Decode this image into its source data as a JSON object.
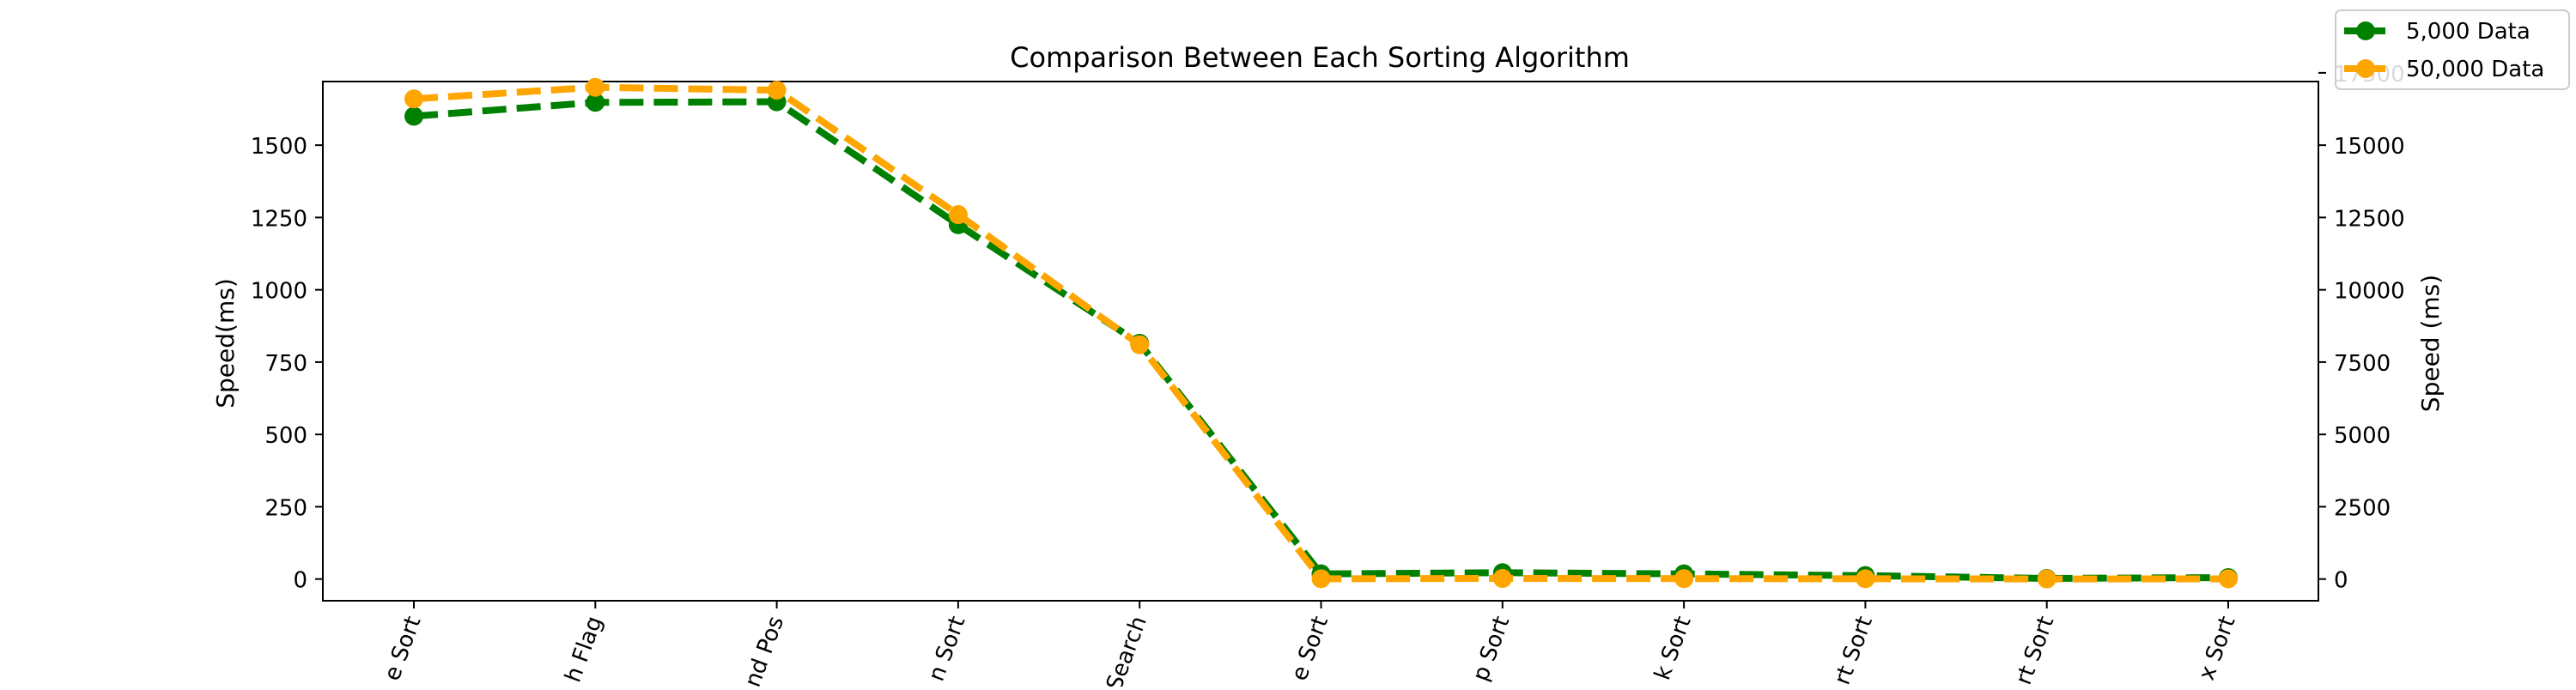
{
  "chart_data": {
    "type": "line",
    "title": "Comparison Between Each Sorting Algorithm",
    "xlabel": "",
    "ylabel_left": "Speed(ms)",
    "ylabel_right": "Speed (ms)",
    "categories": [
      "e Sort",
      "h Flag",
      "nd Pos",
      "n Sort",
      "Search",
      "e Sort",
      "p Sort",
      "k Sort",
      "rt Sort",
      "rt Sort",
      "x Sort"
    ],
    "ylim_left": [
      -75,
      1720
    ],
    "ylim_right": [
      -750,
      17200
    ],
    "yticks_left": [
      0,
      250,
      500,
      750,
      1000,
      1250,
      1500
    ],
    "yticks_right": [
      0,
      2500,
      5000,
      7500,
      10000,
      12500,
      15000,
      17500
    ],
    "grid": false,
    "legend_position": "top-right",
    "series": [
      {
        "name": "5,000 Data",
        "axis": "left",
        "color": "#008000",
        "style": "dashed",
        "marker": "circle",
        "values": [
          1600,
          1648,
          1650,
          1225,
          815,
          18,
          22,
          18,
          12,
          2,
          5
        ]
      },
      {
        "name": "50,000 Data",
        "axis": "right",
        "color": "#FFA500",
        "style": "dashed",
        "marker": "circle",
        "values": [
          16600,
          17000,
          16900,
          12600,
          8100,
          10,
          20,
          15,
          10,
          5,
          8
        ]
      }
    ]
  }
}
